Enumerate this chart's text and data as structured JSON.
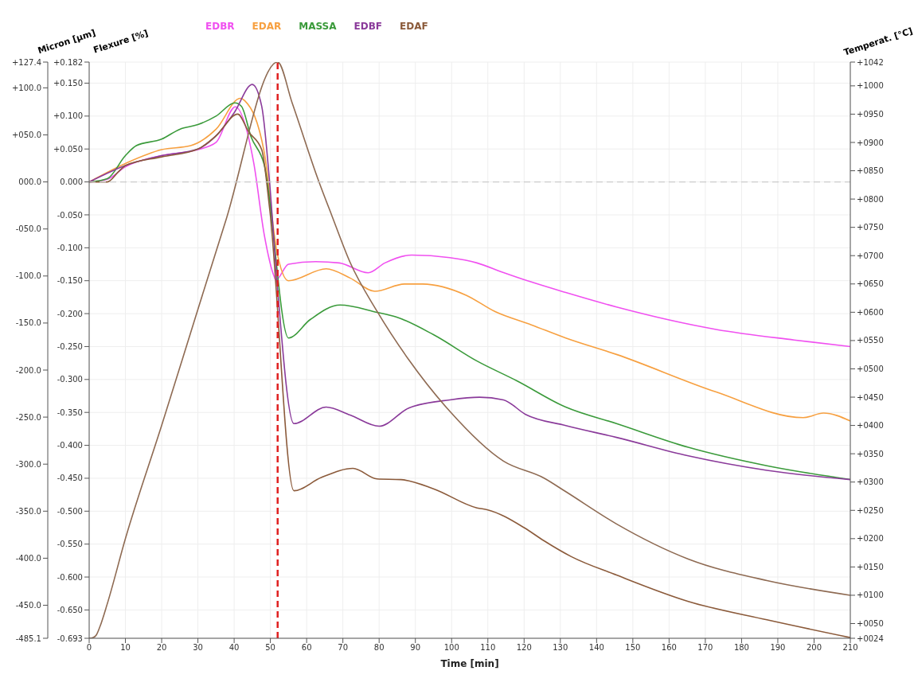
{
  "chart_data": {
    "type": "line",
    "xlabel": "Time [min]",
    "ylabel": "Flexure [%]",
    "y2label": "Temperat. [°C]",
    "y3label": "Micron [µm]",
    "xlim": [
      0,
      210
    ],
    "xticks": [
      0,
      10,
      20,
      30,
      40,
      50,
      60,
      70,
      80,
      90,
      100,
      110,
      120,
      130,
      140,
      150,
      160,
      170,
      180,
      190,
      200,
      210
    ],
    "ylim": [
      -0.693,
      0.182
    ],
    "yticks": [
      {
        "value": 0.182,
        "label": "+0.182"
      },
      {
        "value": 0.15,
        "label": "+0.150"
      },
      {
        "value": 0.1,
        "label": "+0.100"
      },
      {
        "value": 0.05,
        "label": "+0.050"
      },
      {
        "value": 0,
        "label": "0.000"
      },
      {
        "value": -0.05,
        "label": "-0.050"
      },
      {
        "value": -0.1,
        "label": "-0.100"
      },
      {
        "value": -0.15,
        "label": "-0.150"
      },
      {
        "value": -0.2,
        "label": "-0.200"
      },
      {
        "value": -0.25,
        "label": "-0.250"
      },
      {
        "value": -0.3,
        "label": "-0.300"
      },
      {
        "value": -0.35,
        "label": "-0.350"
      },
      {
        "value": -0.4,
        "label": "-0.400"
      },
      {
        "value": -0.45,
        "label": "-0.450"
      },
      {
        "value": -0.5,
        "label": "-0.500"
      },
      {
        "value": -0.55,
        "label": "-0.550"
      },
      {
        "value": -0.6,
        "label": "-0.600"
      },
      {
        "value": -0.65,
        "label": "-0.650"
      },
      {
        "value": -0.693,
        "label": "-0.693"
      }
    ],
    "y3lim": [
      -485.1,
      127.4
    ],
    "y3ticks": [
      {
        "value": 127.4,
        "label": "+127.4"
      },
      {
        "value": 100,
        "label": "+100.0"
      },
      {
        "value": 50,
        "label": "+050.0"
      },
      {
        "value": 0,
        "label": "000.0"
      },
      {
        "value": -50,
        "label": "-050.0"
      },
      {
        "value": -100,
        "label": "-100.0"
      },
      {
        "value": -150,
        "label": "-150.0"
      },
      {
        "value": -200,
        "label": "-200.0"
      },
      {
        "value": -250,
        "label": "-250.0"
      },
      {
        "value": -300,
        "label": "-300.0"
      },
      {
        "value": -350,
        "label": "-350.0"
      },
      {
        "value": -400,
        "label": "-400.0"
      },
      {
        "value": -450,
        "label": "-450.0"
      },
      {
        "value": -485.1,
        "label": "-485.1"
      }
    ],
    "y2lim": [
      24,
      1042
    ],
    "y2ticks": [
      {
        "value": 1042,
        "label": "+1042"
      },
      {
        "value": 1000,
        "label": "+1000"
      },
      {
        "value": 950,
        "label": "+0950"
      },
      {
        "value": 900,
        "label": "+0900"
      },
      {
        "value": 850,
        "label": "+0850"
      },
      {
        "value": 800,
        "label": "+0800"
      },
      {
        "value": 750,
        "label": "+0750"
      },
      {
        "value": 700,
        "label": "+0700"
      },
      {
        "value": 650,
        "label": "+0650"
      },
      {
        "value": 600,
        "label": "+0600"
      },
      {
        "value": 550,
        "label": "+0550"
      },
      {
        "value": 500,
        "label": "+0500"
      },
      {
        "value": 450,
        "label": "+0450"
      },
      {
        "value": 400,
        "label": "+0400"
      },
      {
        "value": 350,
        "label": "+0350"
      },
      {
        "value": 300,
        "label": "+0300"
      },
      {
        "value": 250,
        "label": "+0250"
      },
      {
        "value": 200,
        "label": "+0200"
      },
      {
        "value": 150,
        "label": "+0150"
      },
      {
        "value": 100,
        "label": "+0100"
      },
      {
        "value": 50,
        "label": "+0050"
      },
      {
        "value": 24,
        "label": "+0024"
      }
    ],
    "grid": true,
    "legend": "top",
    "ref_lines": [
      {
        "axis": "x",
        "value": 52,
        "color": "#e02020",
        "line_style": "dashed"
      },
      {
        "axis": "y",
        "value": 0,
        "color": "#cccccc",
        "line_style": "dashed"
      }
    ],
    "series": [
      {
        "name": "EDBR",
        "color": "#f050f0",
        "x": [
          0,
          5,
          10,
          20,
          30,
          35,
          40.3,
          45.4,
          48.3,
          51,
          51.5,
          55,
          62.5,
          69,
          77,
          81.6,
          89,
          99.5,
          107,
          114,
          122,
          131.5,
          145.5,
          173,
          194.5,
          210
        ],
        "values": [
          0,
          0.004,
          0.023,
          0.04,
          0.049,
          0.06,
          0.114,
          0.029,
          -0.08,
          -0.143,
          -0.149,
          -0.125,
          -0.121,
          -0.123,
          -0.138,
          -0.123,
          -0.111,
          -0.115,
          -0.123,
          -0.137,
          -0.152,
          -0.168,
          -0.19,
          -0.224,
          -0.24,
          -0.25
        ]
      },
      {
        "name": "EDAR",
        "color": "#f7a040",
        "x": [
          0,
          10,
          20,
          28,
          35,
          41.7,
          43,
          48.3,
          51.7,
          55,
          65.4,
          72,
          78.8,
          87,
          92,
          104,
          112,
          122,
          131.5,
          145.5,
          173,
          197,
          202.6,
          210
        ],
        "values": [
          0,
          0.028,
          0.049,
          0.055,
          0.08,
          0.127,
          0.123,
          0.045,
          -0.103,
          -0.15,
          -0.132,
          -0.146,
          -0.166,
          -0.155,
          -0.155,
          -0.172,
          -0.197,
          -0.217,
          -0.237,
          -0.262,
          -0.319,
          -0.358,
          -0.351,
          -0.363
        ]
      },
      {
        "name": "MASSA",
        "color": "#3a9a3a",
        "x": [
          0,
          5,
          10,
          13,
          20,
          25,
          30,
          35,
          40.2,
          42,
          44.7,
          48.3,
          55,
          61,
          69.2,
          79.4,
          84.7,
          95,
          107,
          118,
          131.5,
          145.5,
          165.3,
          187,
          210
        ],
        "values": [
          0,
          0.005,
          0.04,
          0.055,
          0.065,
          0.08,
          0.087,
          0.1,
          0.12,
          0.115,
          0.068,
          0.026,
          -0.237,
          -0.209,
          -0.187,
          -0.198,
          -0.205,
          -0.232,
          -0.272,
          -0.302,
          -0.342,
          -0.367,
          -0.403,
          -0.431,
          -0.452
        ]
      },
      {
        "name": "EDBF",
        "color": "#8a3a9a",
        "x": [
          0,
          10,
          20,
          30,
          35,
          40,
          45,
          47.6,
          49.8,
          51.7,
          56.5,
          65.4,
          72,
          80,
          88.3,
          99.5,
          107.7,
          114.3,
          120.4,
          131.5,
          145.5,
          165.3,
          187,
          210
        ],
        "values": [
          0,
          0.025,
          0.04,
          0.05,
          0.07,
          0.105,
          0.148,
          0.115,
          -0.002,
          -0.143,
          -0.367,
          -0.342,
          -0.354,
          -0.371,
          -0.343,
          -0.331,
          -0.327,
          -0.331,
          -0.353,
          -0.37,
          -0.388,
          -0.416,
          -0.438,
          -0.452
        ]
      },
      {
        "name": "EDAF",
        "color": "#8b5a3a",
        "x": [
          0,
          5,
          8,
          10,
          20,
          30,
          35,
          41,
          44,
          47.6,
          49.8,
          56.5,
          64,
          72.8,
          79.4,
          86,
          95,
          107,
          110,
          120,
          125.5,
          133,
          145.5,
          165.3,
          187,
          210
        ],
        "values": [
          0,
          0,
          0.015,
          0.025,
          0.038,
          0.05,
          0.07,
          0.103,
          0.076,
          0.049,
          -0.041,
          -0.469,
          -0.449,
          -0.435,
          -0.451,
          -0.452,
          -0.466,
          -0.495,
          -0.498,
          -0.525,
          -0.545,
          -0.569,
          -0.597,
          -0.637,
          -0.665,
          -0.692
        ]
      },
      {
        "axis": "y2",
        "color": "#8e6a52",
        "x": [
          0,
          1,
          2,
          3,
          5,
          10,
          20,
          30,
          37.6,
          52,
          56,
          63.2,
          67,
          72,
          79.4,
          88.3,
          99.5,
          114.3,
          125.5,
          131.5,
          145.5,
          165.3,
          187,
          210
        ],
        "values": [
          24,
          25,
          30,
          45,
          85,
          200,
          400,
          605,
          760,
          1042,
          970,
          834,
          770,
          688,
          602,
          515,
          425,
          337,
          307,
          283,
          226,
          164,
          126,
          100
        ]
      }
    ]
  }
}
